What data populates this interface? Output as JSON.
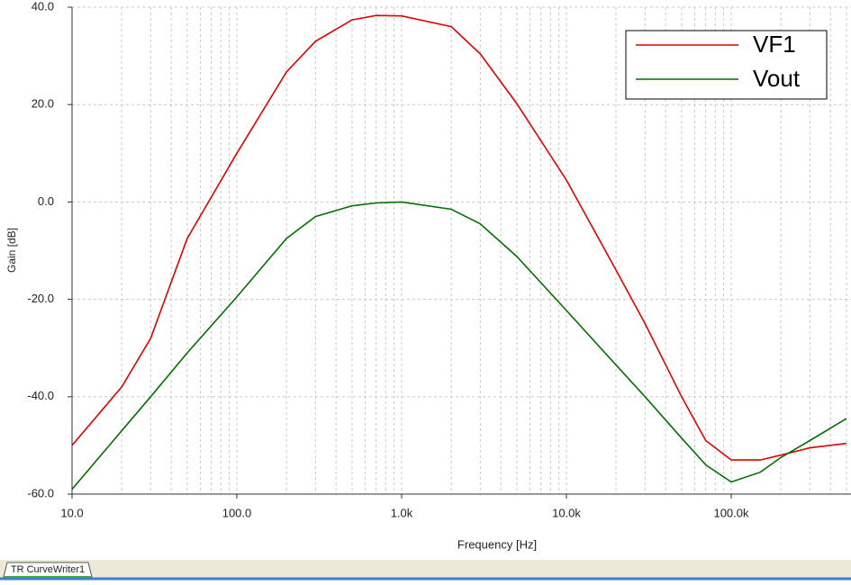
{
  "chart_data": {
    "type": "line",
    "xlabel": "Frequency [Hz]",
    "ylabel": "Gain [dB]",
    "log_x": true,
    "grid": true,
    "legend": "upper right",
    "x": [
      10,
      20,
      30,
      50,
      100,
      200,
      300,
      500,
      700,
      1000,
      2000,
      3000,
      5000,
      10000,
      20000,
      30000,
      50000,
      70000,
      100000,
      150000,
      200000,
      300000,
      500000
    ],
    "series": [
      {
        "name": "VF1",
        "color": "#e00000",
        "values": [
          -50,
          -38,
          -28,
          -7.5,
          10,
          26.7,
          33,
          37.4,
          38.3,
          38.2,
          36,
          30.4,
          20.2,
          4.5,
          -14,
          -25,
          -40,
          -49,
          -53,
          -53,
          -52,
          -50.5,
          -49.6
        ]
      },
      {
        "name": "Vout",
        "color": "#007000",
        "values": [
          -59,
          -47,
          -40,
          -31,
          -19.5,
          -7.5,
          -3,
          -0.8,
          -0.2,
          0,
          -1.5,
          -4.5,
          -11.2,
          -22.3,
          -33.5,
          -40,
          -48.5,
          -54,
          -57.5,
          -55.5,
          -52.5,
          -49,
          -44.5
        ]
      }
    ],
    "xlim": [
      10,
      533000
    ],
    "xticks": [
      {
        "value": 10,
        "label": "10.0"
      },
      {
        "value": 100,
        "label": "100.0"
      },
      {
        "value": 1000,
        "label": "1.0k"
      },
      {
        "value": 10000,
        "label": "10.0k"
      },
      {
        "value": 100000,
        "label": "100.0k"
      }
    ],
    "ylim": [
      -60,
      40
    ],
    "yticks": [
      {
        "value": -60,
        "label": "-60.0"
      },
      {
        "value": -40,
        "label": "-40.0"
      },
      {
        "value": -20,
        "label": "-20.0"
      },
      {
        "value": 0,
        "label": "0.0"
      },
      {
        "value": 20,
        "label": "20.0"
      },
      {
        "value": 40,
        "label": "40.0"
      }
    ]
  },
  "tab": {
    "label": "TR CurveWriter1"
  }
}
